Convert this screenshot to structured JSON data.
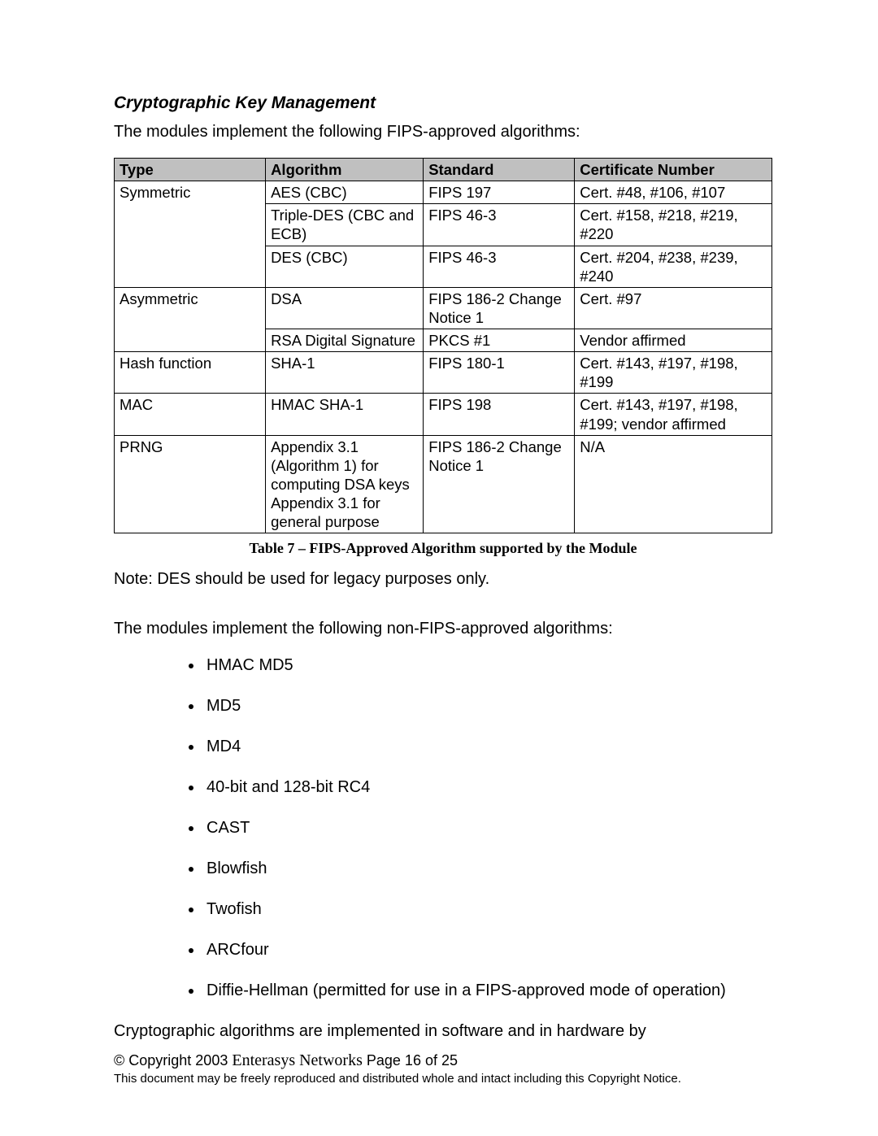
{
  "section_heading": "Cryptographic Key Management",
  "intro_text": "The modules implement the following FIPS-approved algorithms:",
  "table": {
    "columns": [
      "Type",
      "Algorithm",
      "Standard",
      "Certificate Number"
    ],
    "col_widths_pct": [
      23,
      24,
      23,
      30
    ],
    "header_bg": "#c0c0c0",
    "border_color": "#000000",
    "font_size_pt": 14,
    "groups": [
      {
        "type": "Symmetric",
        "rows": [
          {
            "algorithm": "AES (CBC)",
            "standard": "FIPS 197",
            "cert": "Cert. #48, #106, #107"
          },
          {
            "algorithm": "Triple-DES (CBC and ECB)",
            "standard": "FIPS 46-3",
            "cert": "Cert. #158, #218, #219, #220"
          },
          {
            "algorithm": "DES (CBC)",
            "standard": "FIPS 46-3",
            "cert": "Cert. #204, #238, #239, #240"
          }
        ]
      },
      {
        "type": "Asymmetric",
        "rows": [
          {
            "algorithm": "DSA",
            "standard": "FIPS 186-2 Change Notice 1",
            "cert": "Cert. #97"
          },
          {
            "algorithm": "RSA Digital Signature",
            "standard": "PKCS #1",
            "cert": "Vendor affirmed"
          }
        ]
      },
      {
        "type": "Hash function",
        "rows": [
          {
            "algorithm": "SHA-1",
            "standard": "FIPS 180-1",
            "cert": "Cert. #143, #197, #198, #199"
          }
        ]
      },
      {
        "type": "MAC",
        "rows": [
          {
            "algorithm": "HMAC SHA-1",
            "standard": "FIPS 198",
            "cert": "Cert. #143, #197, #198, #199; vendor affirmed"
          }
        ]
      },
      {
        "type": "PRNG",
        "rows": [
          {
            "algorithm": "Appendix 3.1 (Algorithm 1) for computing DSA keys\nAppendix 3.1 for general purpose",
            "standard": "FIPS 186-2 Change Notice 1",
            "cert": "N/A"
          }
        ]
      }
    ]
  },
  "caption": "Table 7 – FIPS-Approved Algorithm supported by the Module",
  "note_text": "Note: DES should be used for legacy purposes only.",
  "nonfips_intro": "The modules implement the following non-FIPS-approved algorithms:",
  "nonfips_items": [
    "HMAC MD5",
    "MD5",
    "MD4",
    "40-bit and 128-bit RC4",
    "CAST",
    "Blowfish",
    "Twofish",
    "ARCfour",
    "Diffie-Hellman (permitted for use in a FIPS-approved mode of operation)"
  ],
  "closing_text": "Cryptographic algorithms are implemented in software and in hardware by",
  "footer": {
    "copyright_prefix": "© Copyright 2003 ",
    "company": "Enterasys Networks",
    "page_text": "   Page 16 of 25",
    "notice": "This document may be freely reproduced and distributed whole and intact including this Copyright Notice."
  }
}
